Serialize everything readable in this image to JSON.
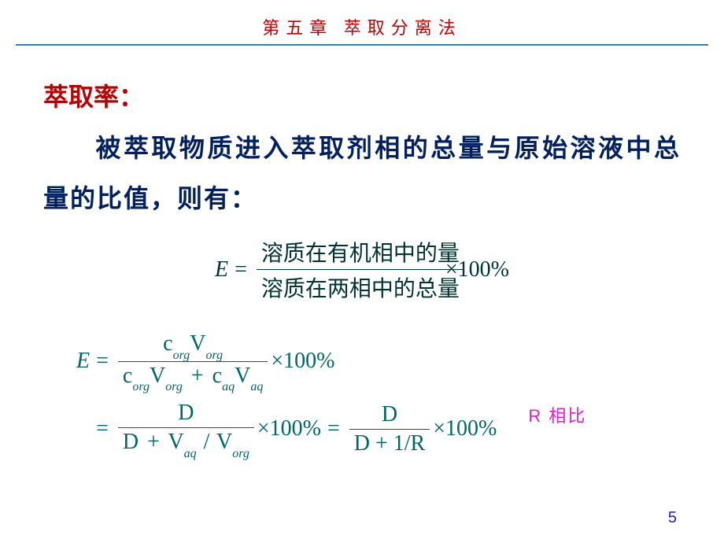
{
  "header": {
    "chapter_title": "第五章  萃取分离法"
  },
  "content": {
    "section_title": "萃取率：",
    "body_text": "被萃取物质进入萃取剂相的总量与原始溶液中总量的比值，则有："
  },
  "equations": {
    "eq1": {
      "lhs": "E",
      "numerator": "溶质在有机相中的量",
      "denominator": "溶质在两相中的总量",
      "times": "×100%"
    },
    "eq2_line1": {
      "lhs": "E",
      "num_parts": [
        "c",
        "org",
        "V",
        "org"
      ],
      "den_parts": [
        "c",
        "org",
        "V",
        "org",
        "+",
        "c",
        "aq",
        "V",
        "aq"
      ],
      "tail": "×100%"
    },
    "eq2_line2": {
      "part_a_num": "D",
      "part_a_den": [
        "D",
        "+",
        "V",
        "aq",
        "/",
        "V",
        "org"
      ],
      "part_b_num": "D",
      "part_b_den": "D + 1/R",
      "tail": "×100%"
    }
  },
  "annotation": "R 相比",
  "page_number": "5",
  "colors": {
    "header_red": "#c00000",
    "rule_blue": "#3080c8",
    "title_red": "#b80000",
    "body_navy": "#002060",
    "eq_gray": "#003333",
    "eq_teal": "#006666",
    "annotation_magenta": "#e020c0",
    "pagenum_blue": "#2020c0"
  }
}
